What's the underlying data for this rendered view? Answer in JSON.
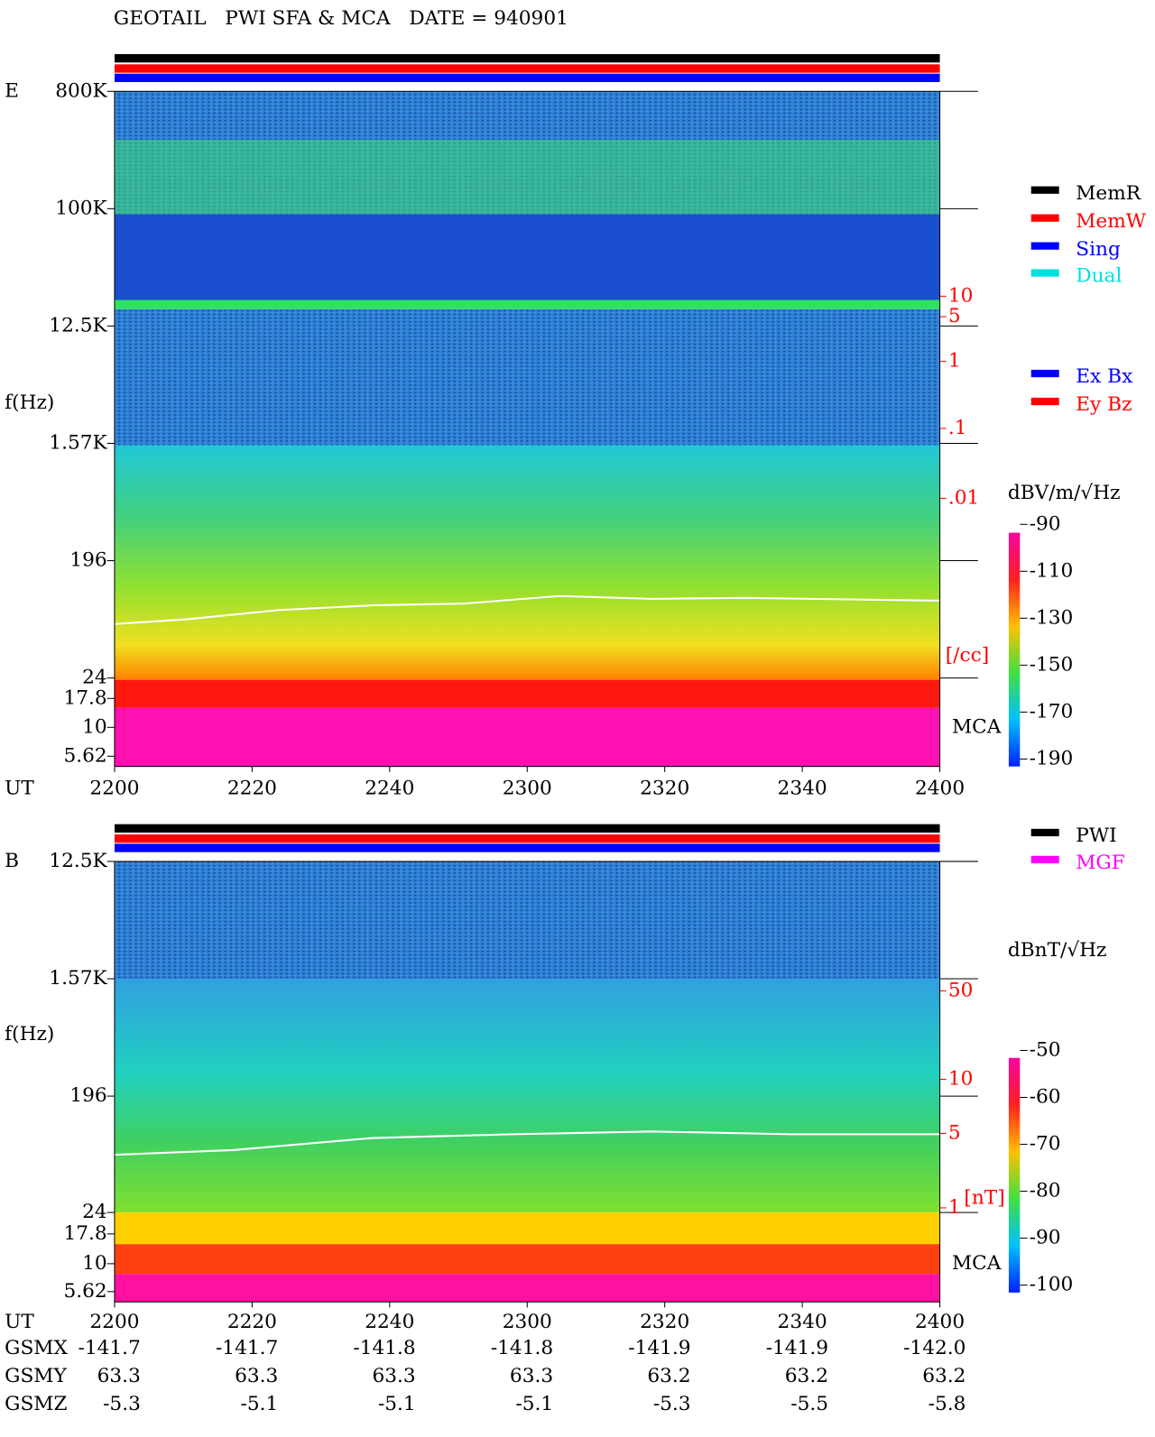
{
  "title": "GEOTAIL   PWI SFA & MCA   DATE = 940901",
  "panels": [
    {
      "label": "E",
      "ylabel": "f(Hz)",
      "freq_ticks": [
        "800K",
        "100K",
        "12.5K",
        "1.57K",
        "196",
        "24",
        "17.8",
        "10",
        "5.62"
      ],
      "right_ticks": [
        "10",
        "5",
        "1",
        ".1",
        ".01"
      ],
      "right_unit": "[/cc]",
      "mca_label": "MCA",
      "legend": [
        {
          "name": "MemR",
          "color": "#000000"
        },
        {
          "name": "MemW",
          "color": "#ff0000"
        },
        {
          "name": "Sing",
          "color": "#0000ff"
        },
        {
          "name": "Dual",
          "color": "#00e0e0"
        }
      ],
      "legend2": [
        {
          "name": "Ex Bx",
          "color": "#0000ff"
        },
        {
          "name": "Ey Bz",
          "color": "#ff0000"
        }
      ],
      "colorbar": {
        "unit": "dBV/m/√Hz",
        "ticks": [
          -90,
          -110,
          -130,
          -150,
          -170,
          -190
        ]
      }
    },
    {
      "label": "B",
      "ylabel": "f(Hz)",
      "freq_ticks": [
        "12.5K",
        "1.57K",
        "196",
        "24",
        "17.8",
        "10",
        "5.62"
      ],
      "right_ticks": [
        "50",
        "10",
        "5",
        "1"
      ],
      "right_unit": "[nT]",
      "mca_label": "MCA",
      "legend": [
        {
          "name": "PWI",
          "color": "#000000"
        },
        {
          "name": "MGF",
          "color": "#ff00ff"
        }
      ],
      "legend2": [],
      "colorbar": {
        "unit": "dBnT/√Hz",
        "ticks": [
          -50,
          -60,
          -70,
          -80,
          -90,
          -100
        ]
      }
    }
  ],
  "time_axis": {
    "label": "UT",
    "ticks": [
      "2200",
      "2220",
      "2240",
      "2300",
      "2320",
      "2340",
      "2400"
    ]
  },
  "orbit": [
    {
      "label": "GSMX",
      "values": [
        "-141.7",
        "-141.7",
        "-141.8",
        "-141.8",
        "-141.9",
        "-141.9",
        "-142.0"
      ]
    },
    {
      "label": "GSMY",
      "values": [
        "63.3",
        "63.3",
        "63.3",
        "63.3",
        "63.2",
        "63.2",
        "63.2"
      ]
    },
    {
      "label": "GSMZ",
      "values": [
        "-5.3",
        "-5.1",
        "-5.1",
        "-5.1",
        "-5.3",
        "-5.5",
        "-5.8"
      ]
    }
  ]
}
